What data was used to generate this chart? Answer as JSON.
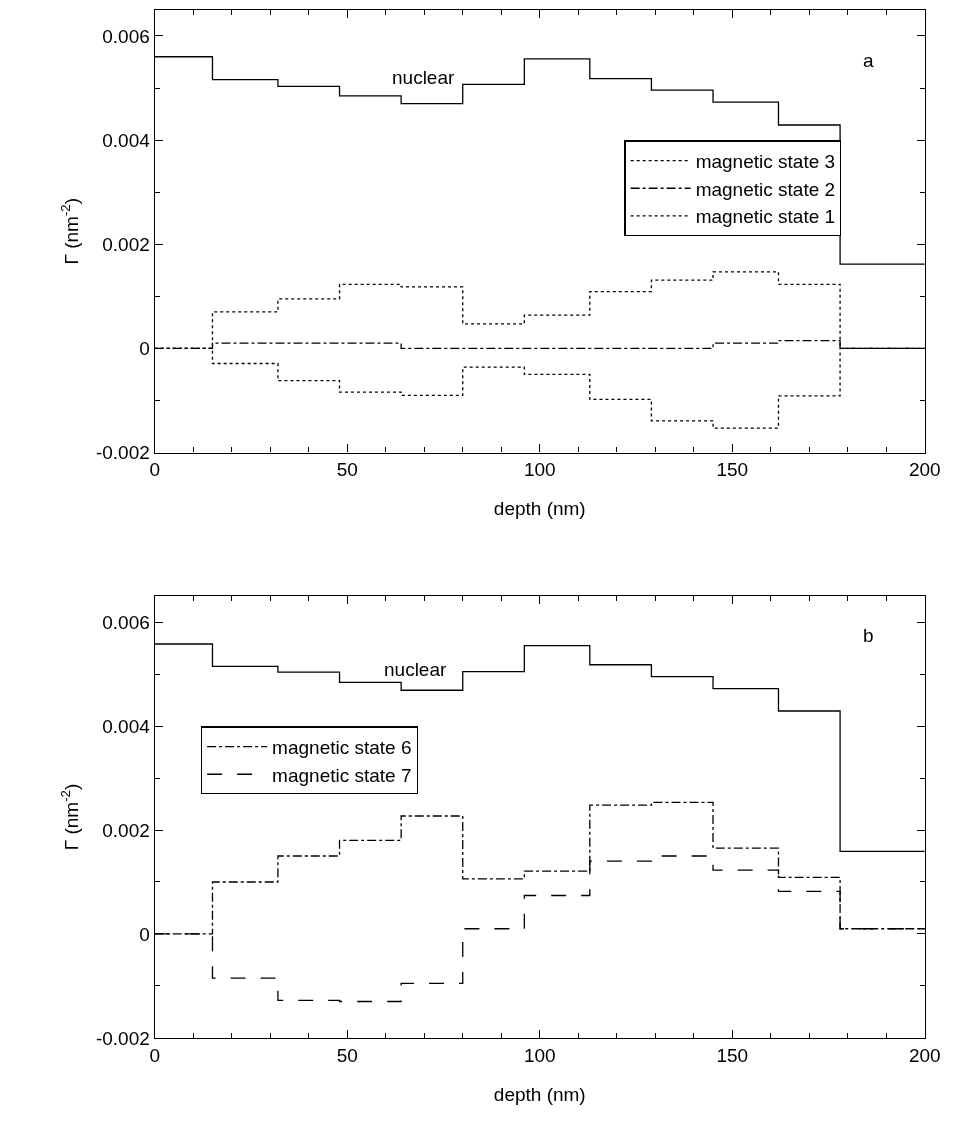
{
  "chart_data": [
    {
      "type": "step",
      "xlabel": "depth (nm)",
      "ylabel": "Γ (nm$^{-2}$)",
      "x": [
        0,
        15,
        32,
        48,
        64,
        80,
        96,
        113,
        129,
        145,
        162,
        178,
        200
      ],
      "series": [
        {
          "color": "#000000",
          "line_style": "solid",
          "values": [
            0.0056,
            0.00516,
            0.00503,
            0.00485,
            0.0047,
            0.00507,
            0.00556,
            0.00518,
            0.00496,
            0.00473,
            0.00429,
            0.00162,
            0.00162
          ]
        },
        {
          "name": "magnetic state 3",
          "color": "#000000",
          "line_style": "dotted",
          "values": [
            0,
            -0.00029,
            -0.00062,
            -0.00084,
            -0.0009,
            -0.00036,
            -0.0005,
            -0.00098,
            -0.00139,
            -0.00153,
            -0.00091,
            0,
            0
          ]
        },
        {
          "name": "magnetic state 2",
          "color": "#000000",
          "line_style": "dashdot",
          "values": [
            0,
            0.0001,
            0.0001,
            0.0001,
            0,
            0,
            0,
            0,
            0,
            0.0001,
            0.00015,
            0,
            0
          ]
        },
        {
          "name": "magnetic state 1",
          "color": "#000000",
          "line_style": "dotted",
          "values": [
            0,
            0.0007,
            0.00095,
            0.00123,
            0.00118,
            0.00047,
            0.00064,
            0.00109,
            0.00131,
            0.00147,
            0.00123,
            0,
            0
          ]
        }
      ],
      "annotations": [
        "nuclear",
        "a"
      ],
      "xlim": [
        0,
        200
      ],
      "xticks": [
        0,
        50,
        100,
        150,
        200
      ],
      "ylim": [
        -0.002,
        0.0065
      ],
      "yticks": [
        -0.002,
        0,
        0.002,
        0.004,
        0.006
      ],
      "legend": "top right"
    },
    {
      "type": "step",
      "xlabel": "depth (nm)",
      "ylabel": "Γ (nm$^{-2}$)",
      "x": [
        0,
        15,
        32,
        48,
        64,
        80,
        96,
        113,
        129,
        145,
        162,
        178,
        200
      ],
      "series": [
        {
          "color": "#000000",
          "line_style": "solid",
          "values": [
            0.00558,
            0.00515,
            0.00504,
            0.00484,
            0.00469,
            0.00505,
            0.00555,
            0.00518,
            0.00495,
            0.00472,
            0.00429,
            0.00159,
            0.00159
          ]
        },
        {
          "name": "magnetic state 6",
          "color": "#000000",
          "line_style": "dashdot",
          "values": [
            0,
            0.001,
            0.0015,
            0.0018,
            0.00227,
            0.00106,
            0.00121,
            0.00248,
            0.00253,
            0.00165,
            0.00109,
            0.0001,
            0.0001
          ]
        },
        {
          "name": "magnetic state 7",
          "color": "#000000",
          "line_style": "dashed",
          "values": [
            0,
            -0.00085,
            -0.00128,
            -0.0013,
            -0.00095,
            0.0001,
            0.00074,
            0.0014,
            0.0015,
            0.00123,
            0.00082,
            0.0001,
            0.0001
          ]
        }
      ],
      "annotations": [
        "nuclear",
        "b"
      ],
      "xlim": [
        0,
        200
      ],
      "xticks": [
        0,
        50,
        100,
        150,
        200
      ],
      "ylim": [
        -0.002,
        0.0065
      ],
      "yticks": [
        -0.002,
        0,
        0.002,
        0.004,
        0.006
      ],
      "legend": "top left"
    }
  ]
}
